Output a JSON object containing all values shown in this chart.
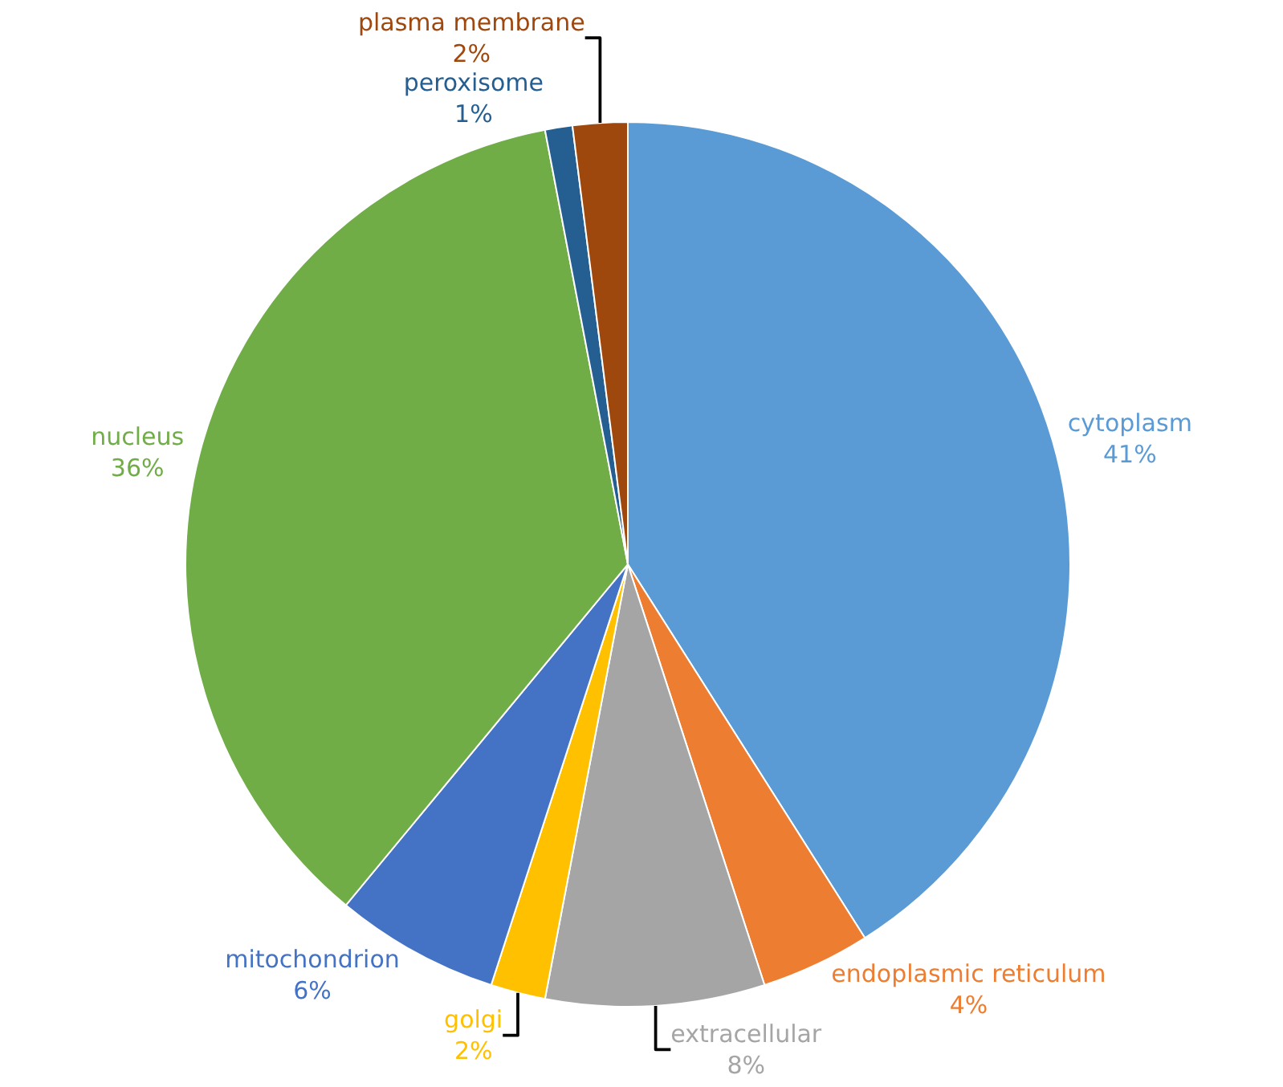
{
  "chart_data": {
    "type": "pie",
    "categories": [
      "cytoplasm",
      "endoplasmic reticulum",
      "extracellular",
      "golgi",
      "mitochondrion",
      "nucleus",
      "peroxisome",
      "plasma membrane"
    ],
    "values": [
      41,
      4,
      8,
      2,
      6,
      36,
      1,
      2
    ],
    "value_labels": [
      "41%",
      "4%",
      "8%",
      "2%",
      "6%",
      "36%",
      "1%",
      "2%"
    ],
    "colors": [
      "#5b9bd5",
      "#ed7d31",
      "#a5a5a5",
      "#ffc000",
      "#4472c4",
      "#70ad47",
      "#255e91",
      "#9e480e"
    ],
    "legend": false
  }
}
